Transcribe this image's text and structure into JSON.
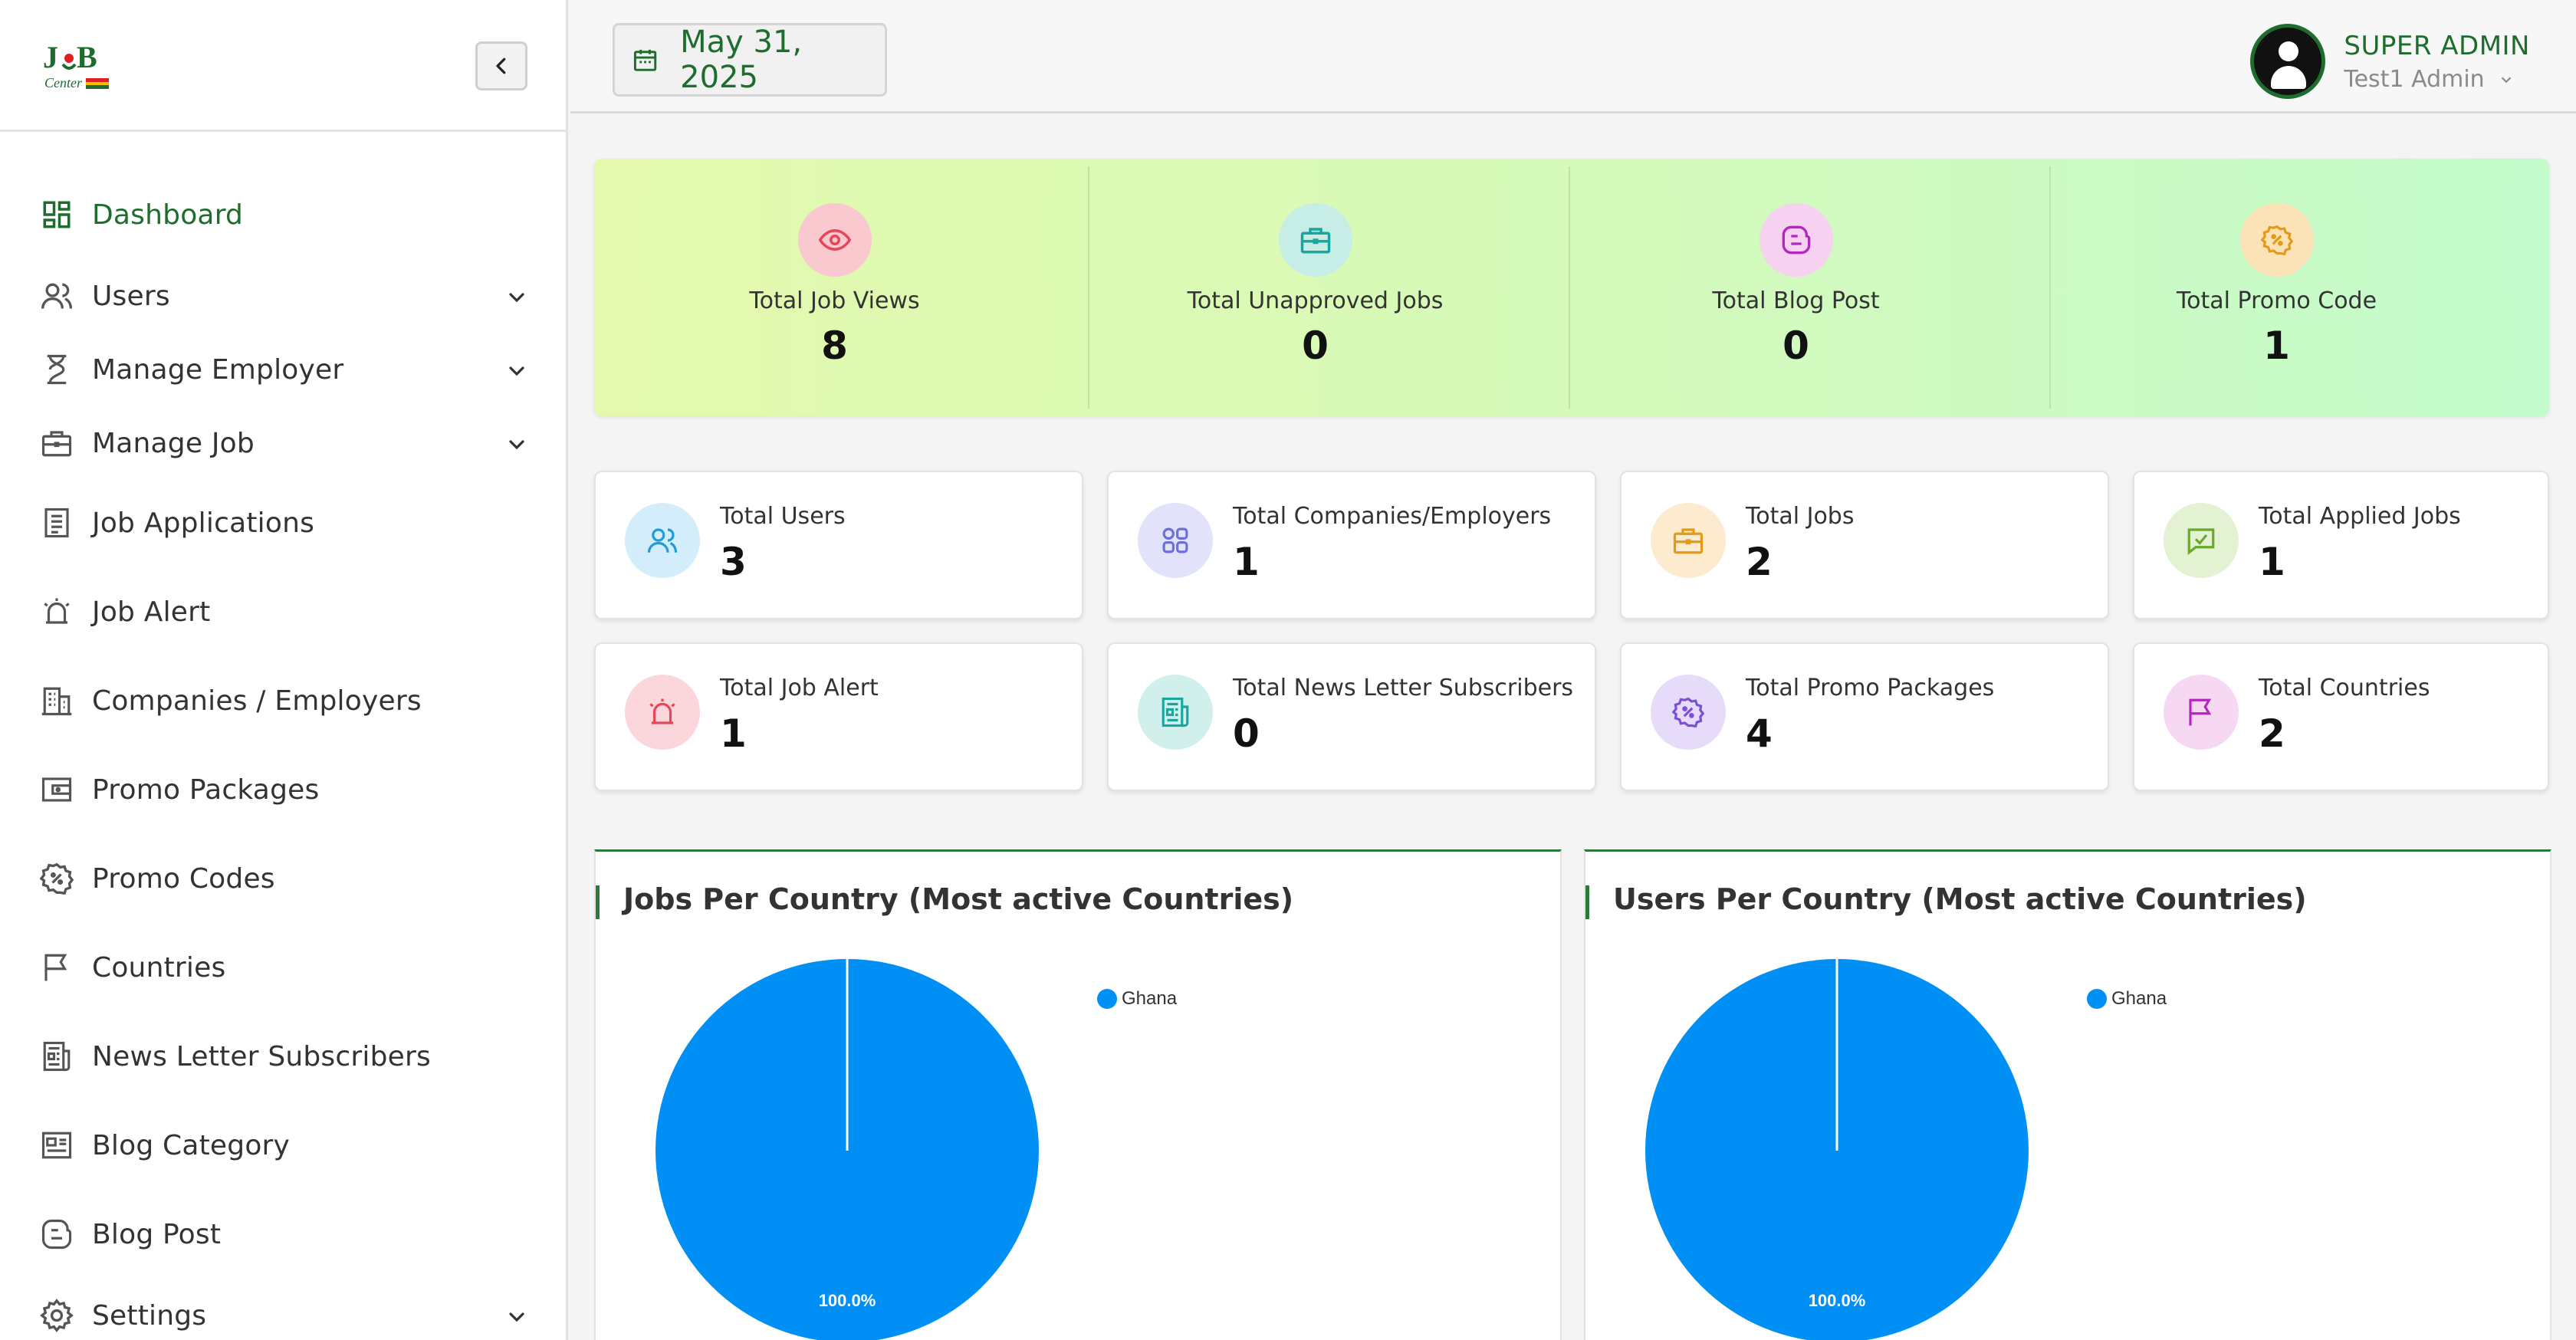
{
  "brand": {
    "logo_text_top": "JOB",
    "logo_text_bottom": "Center"
  },
  "topbar": {
    "date": "May 31, 2025",
    "user": {
      "role": "SUPER ADMIN",
      "name": "Test1 Admin"
    }
  },
  "sidebar": {
    "items": [
      {
        "label": "Dashboard",
        "icon": "dashboard-grid-icon",
        "active": true,
        "has_children": false
      },
      {
        "label": "Users",
        "icon": "users-icon",
        "has_children": true
      },
      {
        "label": "Manage Employer",
        "icon": "hourglass-icon",
        "has_children": true
      },
      {
        "label": "Manage Job",
        "icon": "briefcase-icon",
        "has_children": true
      },
      {
        "label": "Job Applications",
        "icon": "document-icon",
        "has_children": false
      },
      {
        "label": "Job Alert",
        "icon": "alarm-icon",
        "has_children": false
      },
      {
        "label": "Companies / Employers",
        "icon": "building-icon",
        "has_children": false
      },
      {
        "label": "Promo Packages",
        "icon": "wallet-icon",
        "has_children": false
      },
      {
        "label": "Promo Codes",
        "icon": "discount-badge-icon",
        "has_children": false
      },
      {
        "label": "Countries",
        "icon": "flag-icon",
        "has_children": false
      },
      {
        "label": "News Letter Subscribers",
        "icon": "newspaper-icon",
        "has_children": false
      },
      {
        "label": "Blog Category",
        "icon": "blog-category-icon",
        "has_children": false
      },
      {
        "label": "Blog Post",
        "icon": "blog-post-icon",
        "has_children": false
      },
      {
        "label": "Settings",
        "icon": "gear-icon",
        "has_children": true
      }
    ]
  },
  "hero_stats": [
    {
      "label": "Total Job Views",
      "value": "8",
      "icon": "eye-icon",
      "color": "#e8445a",
      "bg": "#f9c9cf"
    },
    {
      "label": "Total Unapproved Jobs",
      "value": "0",
      "icon": "briefcase-icon",
      "color": "#1aa6a0",
      "bg": "#c6eee6"
    },
    {
      "label": "Total Blog Post",
      "value": "0",
      "icon": "blog-post-icon",
      "color": "#b526c0",
      "bg": "#f7d1f0"
    },
    {
      "label": "Total Promo Code",
      "value": "1",
      "icon": "discount-badge-icon",
      "color": "#e49a16",
      "bg": "#fbe3b7"
    }
  ],
  "stat_cards": [
    {
      "label": "Total Users",
      "value": "3",
      "icon": "users-icon",
      "color": "#1e9bd8",
      "bg": "#d3eefa"
    },
    {
      "label": "Total Companies/Employers",
      "value": "1",
      "icon": "grid-dots-icon",
      "color": "#6b6fd9",
      "bg": "#e2e2fa"
    },
    {
      "label": "Total Jobs",
      "value": "2",
      "icon": "briefcase-icon",
      "color": "#e49a16",
      "bg": "#fcebcf"
    },
    {
      "label": "Total Applied Jobs",
      "value": "1",
      "icon": "message-check-icon",
      "color": "#6aa82a",
      "bg": "#e3f2d2"
    },
    {
      "label": "Total Job Alert",
      "value": "1",
      "icon": "alarm-icon",
      "color": "#e8445a",
      "bg": "#fbd7db"
    },
    {
      "label": "Total News Letter Subscribers",
      "value": "0",
      "icon": "newspaper-icon",
      "color": "#1aa6a0",
      "bg": "#d1f0ec"
    },
    {
      "label": "Total Promo Packages",
      "value": "4",
      "icon": "discount-badge-icon",
      "color": "#7a4fd6",
      "bg": "#e6dcfa"
    },
    {
      "label": "Total Countries",
      "value": "2",
      "icon": "flag-icon",
      "color": "#b526c0",
      "bg": "#f7d8f3"
    }
  ],
  "chart_data": [
    {
      "type": "pie",
      "title": "Jobs Per Country (Most active Countries)",
      "labels": [
        "Ghana"
      ],
      "values": [
        100.0
      ],
      "value_labels": [
        "100.0%"
      ],
      "colors": [
        "#0090f5"
      ],
      "legend": "top-right"
    },
    {
      "type": "pie",
      "title": "Users Per Country (Most active Countries)",
      "labels": [
        "Ghana"
      ],
      "values": [
        100.0
      ],
      "value_labels": [
        "100.0%"
      ],
      "colors": [
        "#0090f5"
      ],
      "legend": "top-right"
    }
  ]
}
